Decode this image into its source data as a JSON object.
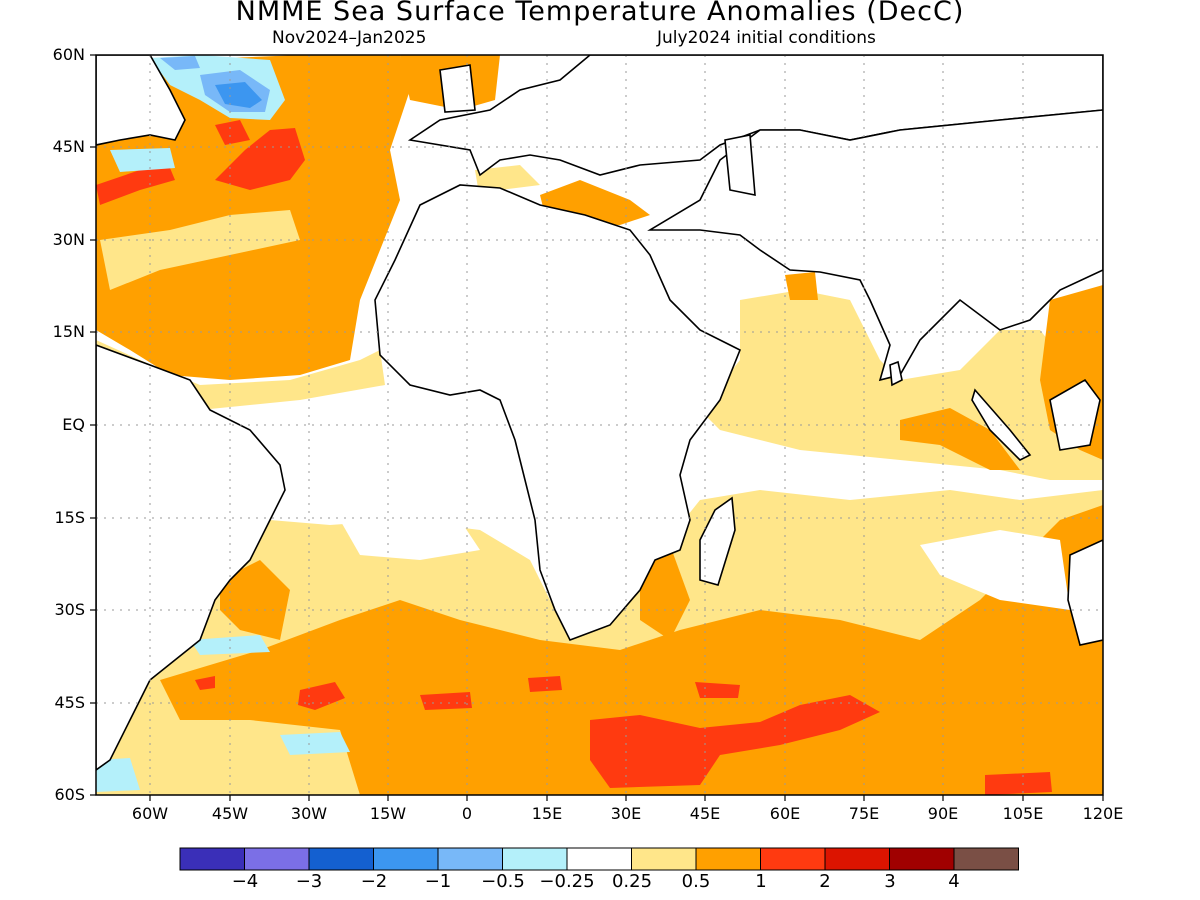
{
  "title": "NMME Sea Surface Temperature Anomalies (DecC)",
  "subtitle_left": "Nov2024–Jan2025",
  "subtitle_right": "July2024 initial conditions",
  "lat_labels": [
    "60N",
    "45N",
    "30N",
    "15N",
    "EQ",
    "15S",
    "30S",
    "45S",
    "60S"
  ],
  "lon_labels": [
    "60W",
    "45W",
    "30W",
    "15W",
    "0",
    "15E",
    "30E",
    "45E",
    "60E",
    "75E",
    "90E",
    "105E",
    "120E"
  ],
  "colorbar": {
    "colors": [
      "#3a2fb8",
      "#7b6fe6",
      "#1460d0",
      "#3c96f0",
      "#78b8f8",
      "#b4f0fa",
      "#ffffff",
      "#ffe68a",
      "#ffa000",
      "#ff3a10",
      "#dc1400",
      "#a00000",
      "#7a4f45"
    ],
    "labels": [
      "−4",
      "−3",
      "−2",
      "−1",
      "−0.5",
      "−0.25",
      "0.25",
      "0.5",
      "1",
      "2",
      "3",
      "4"
    ]
  },
  "palette": {
    "weak_warm": "#ffe68a",
    "warm": "#ffa000",
    "strong_warm": "#ff3a10",
    "cool": "#78b8f8",
    "weak_cool": "#b4f0fa",
    "cold": "#3c96f0",
    "land_outline": "#000000"
  }
}
